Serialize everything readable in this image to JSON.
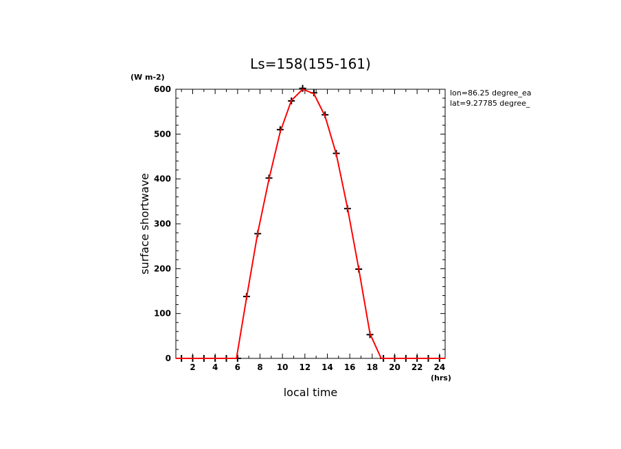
{
  "chart_data": {
    "type": "line",
    "title": "Ls=158(155-161)",
    "xlabel": "local time",
    "ylabel": "surface shortwave",
    "x_unit": "(hrs)",
    "y_unit": "(W m-2)",
    "xlim": [
      0.5,
      24.5
    ],
    "ylim": [
      0,
      600
    ],
    "x_ticks": [
      2,
      4,
      6,
      8,
      10,
      12,
      14,
      16,
      18,
      20,
      22,
      24
    ],
    "x_tick_labels": [
      "2",
      "4",
      "6",
      "8",
      "10",
      "12",
      "14",
      "16",
      "18",
      "20",
      "22",
      "24"
    ],
    "y_ticks": [
      0,
      100,
      200,
      300,
      400,
      500,
      600
    ],
    "y_tick_labels": [
      "0",
      "100",
      "200",
      "300",
      "400",
      "500",
      "600"
    ],
    "annotations": [
      "lon=86.25 degree_ea",
      "lat=9.27785 degree_"
    ],
    "line": {
      "color": "#ff0000",
      "x": [
        0.5,
        5.9,
        6.8,
        7.8,
        8.8,
        9.8,
        10.8,
        11.8,
        12.8,
        13.8,
        14.8,
        15.8,
        16.8,
        17.8,
        18.8,
        24.5
      ],
      "y": [
        0,
        0,
        135,
        280,
        400,
        505,
        575,
        600,
        590,
        540,
        455,
        335,
        200,
        55,
        0,
        0
      ]
    },
    "points": {
      "color": "#000000",
      "x": [
        1.0,
        2.0,
        3.0,
        4.0,
        5.0,
        6.0,
        6.8,
        7.8,
        8.8,
        9.8,
        10.8,
        11.8,
        12.8,
        13.8,
        14.8,
        15.8,
        16.8,
        17.8,
        19.0,
        20.0,
        21.0,
        22.0,
        23.0,
        24.0
      ],
      "y": [
        0,
        0,
        0,
        0,
        0,
        0,
        138,
        278,
        402,
        510,
        574,
        602,
        592,
        543,
        457,
        334,
        199,
        53,
        0,
        0,
        0,
        0,
        0,
        0
      ]
    }
  }
}
